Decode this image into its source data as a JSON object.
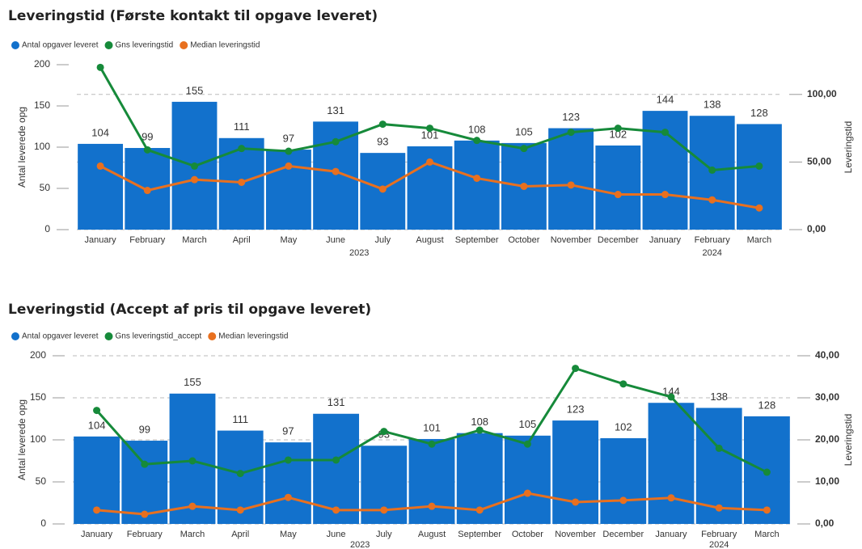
{
  "chart_data": [
    {
      "type": "bar_line",
      "title": "Leveringstid (Første kontakt til opgave leveret)",
      "y_label": "Antal leverede opg",
      "y2_label": "Leveringstid",
      "categories": [
        "January",
        "February",
        "March",
        "April",
        "May",
        "June",
        "July",
        "August",
        "September",
        "October",
        "November",
        "December",
        "January",
        "February",
        "March"
      ],
      "category_years": [
        "2023",
        "2023",
        "2023",
        "2023",
        "2023",
        "2023",
        "2023",
        "2023",
        "2023",
        "2023",
        "2023",
        "2023",
        "2024",
        "2024",
        "2024"
      ],
      "series": [
        {
          "name": "Antal opgaver leveret",
          "type": "bar",
          "color": "#1271cc",
          "values": [
            104,
            99,
            155,
            111,
            97,
            131,
            93,
            101,
            108,
            105,
            123,
            102,
            144,
            138,
            128
          ]
        },
        {
          "name": "Gns leveringstid",
          "type": "line",
          "axis": "y2",
          "color": "#168a3a",
          "values": [
            120,
            59,
            47,
            60,
            58,
            65,
            78,
            75,
            66,
            60,
            72,
            75,
            72,
            44,
            47
          ]
        },
        {
          "name": "Median leveringstid",
          "type": "line",
          "axis": "y2",
          "color": "#e8701f",
          "values": [
            47,
            29,
            37,
            35,
            47,
            43,
            30,
            50,
            38,
            32,
            33,
            26,
            26,
            22,
            16
          ]
        }
      ],
      "ylim": [
        0,
        200
      ],
      "yticks": [
        0,
        50,
        100,
        150,
        200
      ],
      "y2lim": [
        0,
        122
      ],
      "y2ticks": [
        {
          "value": 0,
          "label": "0,00"
        },
        {
          "value": 50,
          "label": "50,00"
        },
        {
          "value": 100,
          "label": "100,00"
        }
      ],
      "grid": "y2"
    },
    {
      "type": "bar_line",
      "title": "Leveringstid (Accept af pris til opgave leveret)",
      "y_label": "Antal leverede opg",
      "y2_label": "Leveringstid",
      "categories": [
        "January",
        "February",
        "March",
        "April",
        "May",
        "June",
        "July",
        "August",
        "September",
        "October",
        "November",
        "December",
        "January",
        "February",
        "March"
      ],
      "category_years": [
        "2023",
        "2023",
        "2023",
        "2023",
        "2023",
        "2023",
        "2023",
        "2023",
        "2023",
        "2023",
        "2023",
        "2023",
        "2024",
        "2024",
        "2024"
      ],
      "series": [
        {
          "name": "Antal opgaver leveret",
          "type": "bar",
          "color": "#1271cc",
          "values": [
            104,
            99,
            155,
            111,
            97,
            131,
            93,
            101,
            108,
            105,
            123,
            102,
            144,
            138,
            128
          ]
        },
        {
          "name": "Gns leveringstid_accept",
          "type": "line",
          "axis": "y2",
          "color": "#168a3a",
          "values": [
            27,
            14.2,
            15,
            12,
            15.2,
            15.2,
            22,
            19,
            22.3,
            19,
            37,
            33.3,
            30.2,
            18,
            12.3
          ]
        },
        {
          "name": "Median leveringstid",
          "type": "line",
          "axis": "y2",
          "color": "#e8701f",
          "values": [
            3.3,
            2.3,
            4.2,
            3.3,
            6.3,
            3.3,
            3.3,
            4.2,
            3.3,
            7.3,
            5.2,
            5.6,
            6.2,
            3.8,
            3.3
          ]
        }
      ],
      "ylim": [
        0,
        200
      ],
      "yticks": [
        0,
        50,
        100,
        150,
        200
      ],
      "y2lim": [
        0,
        40
      ],
      "y2ticks": [
        {
          "value": 0,
          "label": "0,00"
        },
        {
          "value": 10,
          "label": "10,00"
        },
        {
          "value": 20,
          "label": "20,00"
        },
        {
          "value": 30,
          "label": "30,00"
        },
        {
          "value": 40,
          "label": "40,00"
        }
      ],
      "grid": "y"
    }
  ]
}
